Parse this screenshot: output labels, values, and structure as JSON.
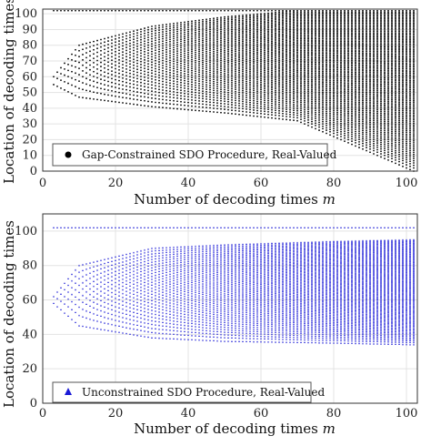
{
  "chart_data": [
    {
      "type": "scatter",
      "xlabel": "Number of decoding times ",
      "xlabel_var": "m",
      "ylabel": "Location of decoding times",
      "xlim": [
        0,
        103
      ],
      "ylim": [
        0,
        103
      ],
      "xticks": [
        0,
        20,
        40,
        60,
        80,
        100
      ],
      "yticks": [
        0,
        10,
        20,
        30,
        40,
        50,
        60,
        70,
        80,
        90,
        100
      ],
      "grid": true,
      "legend_position": "bottom-left",
      "series": [
        {
          "name": "Gap-Constrained SDO Procedure, Real-Valued",
          "marker": "circle",
          "color": "#000000",
          "model": {
            "m_min": 3,
            "m_max": 102,
            "top": 102,
            "bottom_profile": [
              [
                3,
                55
              ],
              [
                10,
                47
              ],
              [
                30,
                41
              ],
              [
                50,
                37
              ],
              [
                70,
                32
              ],
              [
                102,
                0
              ]
            ],
            "top_center_profile": [
              [
                3,
                60
              ],
              [
                10,
                80
              ],
              [
                30,
                92
              ],
              [
                50,
                98
              ],
              [
                70,
                102
              ],
              [
                102,
                102
              ]
            ]
          }
        }
      ]
    },
    {
      "type": "scatter",
      "xlabel": "Number of decoding times ",
      "xlabel_var": "m",
      "ylabel": "Location of decoding times",
      "xlim": [
        0,
        103
      ],
      "ylim": [
        0,
        110
      ],
      "xticks": [
        0,
        20,
        40,
        60,
        80,
        100
      ],
      "yticks": [
        0,
        20,
        40,
        60,
        80,
        100
      ],
      "grid": true,
      "legend_position": "bottom-left",
      "series": [
        {
          "name": "Unconstrained SDO Procedure, Real-Valued",
          "marker": "triangle",
          "color": "#1a1ad6",
          "model": {
            "m_min": 3,
            "m_max": 102,
            "top": 102,
            "bottom_profile": [
              [
                3,
                58
              ],
              [
                10,
                45
              ],
              [
                30,
                38
              ],
              [
                50,
                36
              ],
              [
                80,
                35
              ],
              [
                102,
                34
              ]
            ],
            "top_center_profile": [
              [
                3,
                62
              ],
              [
                10,
                80
              ],
              [
                30,
                90
              ],
              [
                50,
                92
              ],
              [
                80,
                94
              ],
              [
                102,
                95
              ]
            ]
          }
        }
      ]
    }
  ]
}
